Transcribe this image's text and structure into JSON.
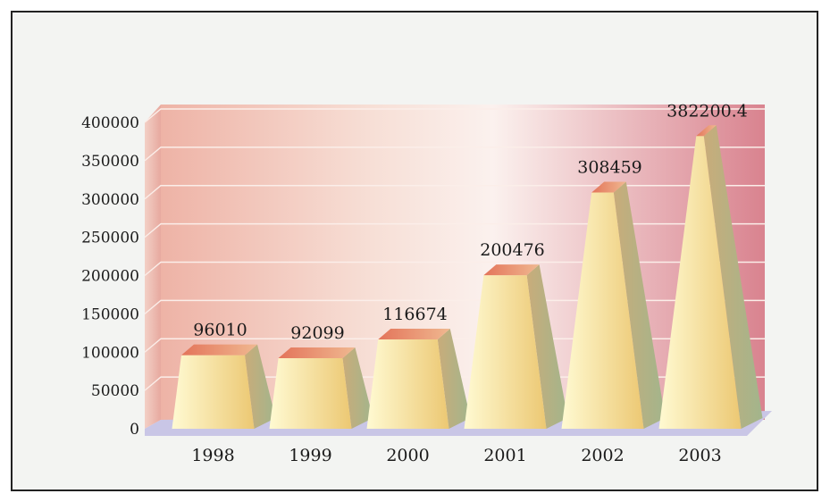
{
  "chart_data": {
    "type": "bar",
    "style": "3d-pyramid",
    "title": "",
    "xlabel": "",
    "ylabel": "",
    "categories": [
      "1998",
      "1999",
      "2000",
      "2001",
      "2002",
      "2003"
    ],
    "series": [
      {
        "values": [
          96010,
          92099,
          116674,
          200476,
          308459,
          382200.4
        ]
      }
    ],
    "value_labels": [
      "96010",
      "92099",
      "116674",
      "200476",
      "308459",
      "382200.4"
    ],
    "ylim": [
      0,
      400000
    ],
    "yticks": [
      "0",
      "50000",
      "100000",
      "150000",
      "200000",
      "250000",
      "300000",
      "350000",
      "400000"
    ],
    "grid": true,
    "legend": "none",
    "colors": {
      "bar_front_light": "#fff6c2",
      "bar_front_dark": "#e8c56a",
      "bar_side": "#b89a66",
      "bar_top": "#e89070",
      "wall_left": "#f6d8cc",
      "wall_right": "#dc8b96",
      "floor": "#c9c6e6"
    }
  }
}
